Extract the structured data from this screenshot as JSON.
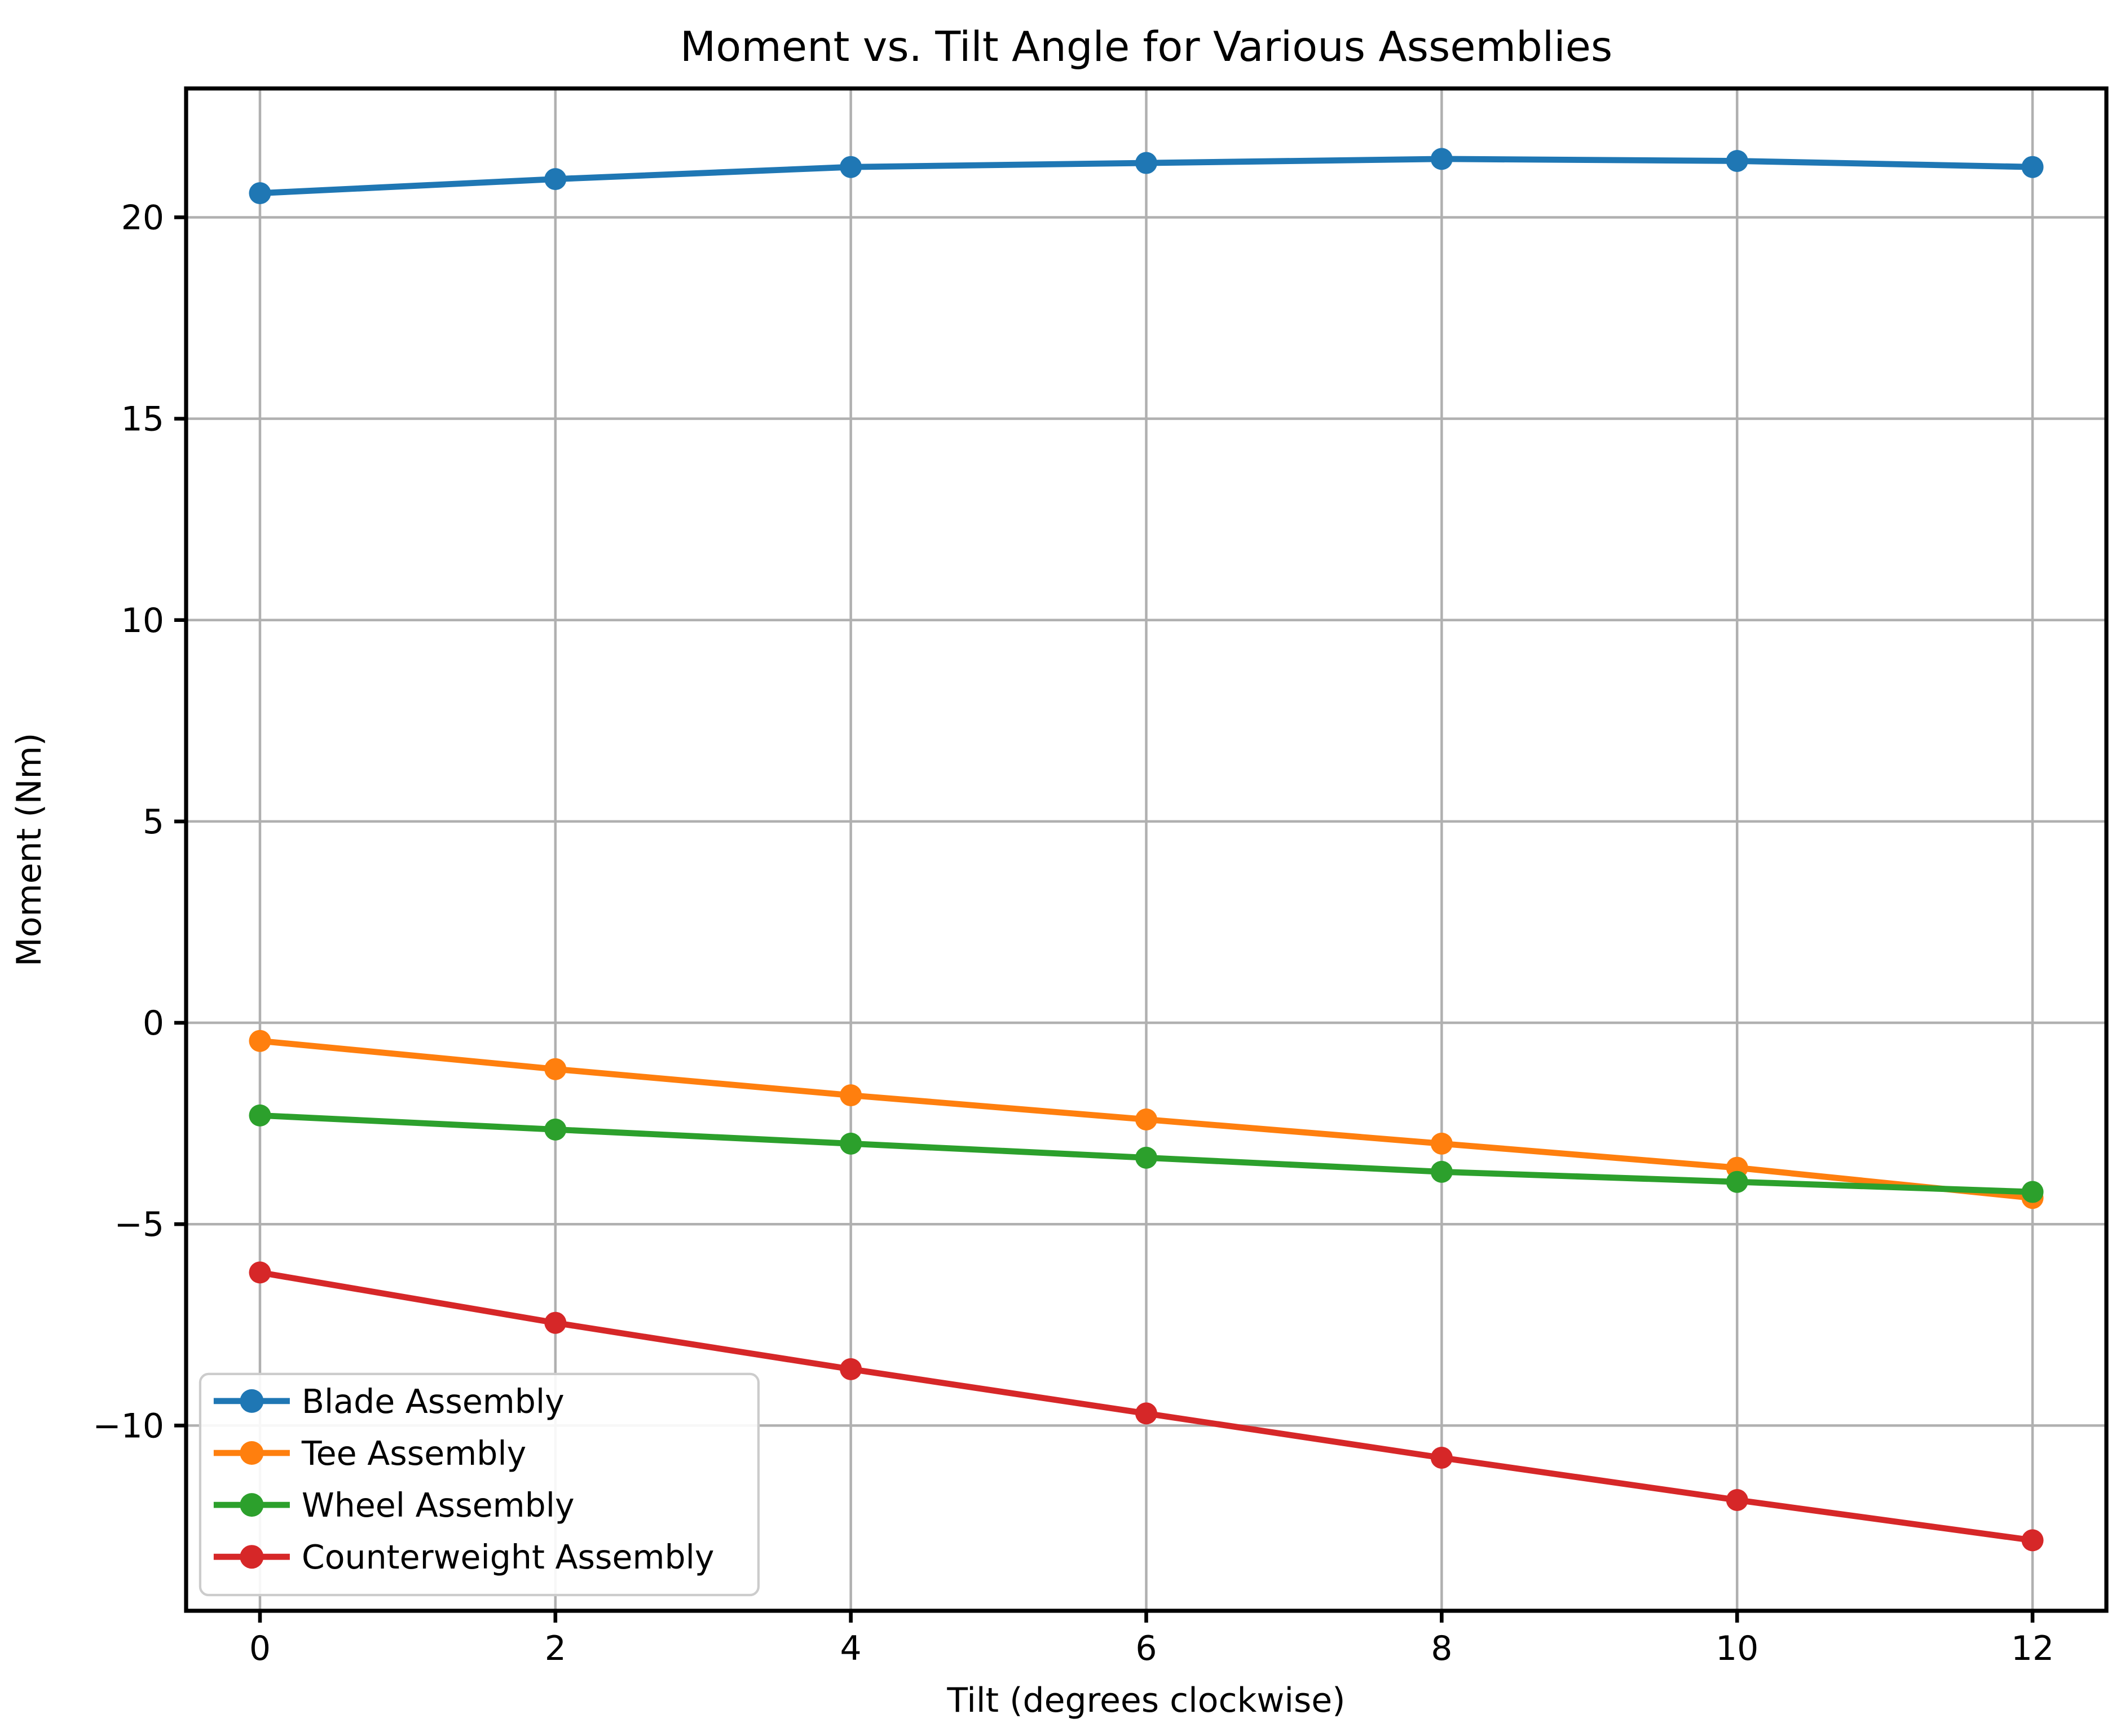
{
  "chart_data": {
    "type": "line",
    "title": "Moment vs. Tilt Angle for Various Assemblies",
    "xlabel": "Tilt (degrees clockwise)",
    "ylabel": "Moment (Nm)",
    "x": [
      0,
      2,
      4,
      6,
      8,
      10,
      12
    ],
    "series": [
      {
        "name": "Blade Assembly",
        "color": "#1f77b4",
        "values": [
          20.6,
          20.95,
          21.25,
          21.35,
          21.45,
          21.4,
          21.25
        ]
      },
      {
        "name": "Tee Assembly",
        "color": "#ff7f0e",
        "values": [
          -0.45,
          -1.15,
          -1.8,
          -2.4,
          -3.0,
          -3.6,
          -4.35
        ]
      },
      {
        "name": "Wheel Assembly",
        "color": "#2ca02c",
        "values": [
          -2.3,
          -2.65,
          -3.0,
          -3.35,
          -3.7,
          -3.95,
          -4.2
        ]
      },
      {
        "name": "Counterweight Assembly",
        "color": "#d62728",
        "values": [
          -6.2,
          -7.45,
          -8.6,
          -9.7,
          -10.8,
          -11.85,
          -12.85
        ]
      }
    ],
    "xticks": [
      0,
      2,
      4,
      6,
      8,
      10,
      12
    ],
    "yticks": [
      -10,
      -5,
      0,
      5,
      10,
      15,
      20
    ],
    "xlim": [
      -0.5,
      12.5
    ],
    "ylim": [
      -14.6,
      23.2
    ],
    "grid": true,
    "grid_color": "#b0b0b0",
    "spine_color": "#000000",
    "background_color": "#ffffff",
    "legend_position": "lower left",
    "legend_border_color": "#cccccc"
  }
}
